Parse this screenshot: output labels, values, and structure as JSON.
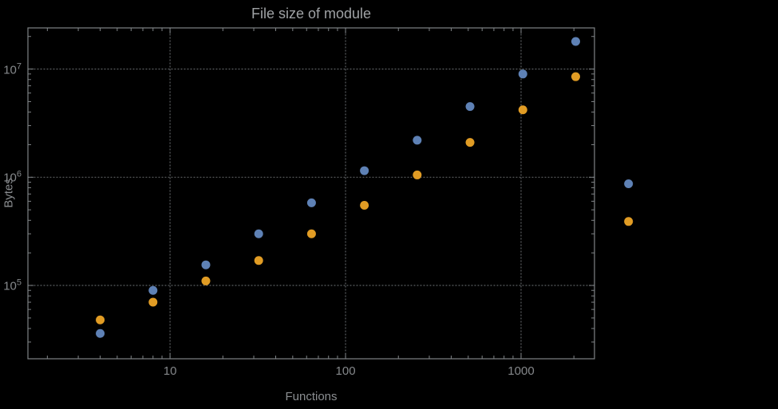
{
  "chart": {
    "title": "File size of module",
    "xlabel": "Functions",
    "ylabel": "Bytes"
  },
  "chart_data": {
    "type": "scatter",
    "x_scale": "log",
    "y_scale": "log",
    "grid": "dotted",
    "legend": "none",
    "title": "File size of module",
    "xlabel": "Functions",
    "ylabel": "Bytes",
    "x": [
      4,
      8,
      16,
      32,
      64,
      128,
      256,
      512,
      1024,
      2048,
      4096
    ],
    "series": [
      {
        "name": "blue",
        "color": "#5E81B5",
        "values": [
          36000,
          90000,
          155000,
          300000,
          580000,
          1150000,
          2200000,
          4500000,
          9000000,
          18000000,
          870000
        ]
      },
      {
        "name": "orange",
        "color": "#E19C24",
        "values": [
          48000,
          70000,
          110000,
          170000,
          300000,
          550000,
          1050000,
          2100000,
          4200000,
          8500000,
          390000
        ]
      }
    ],
    "x_ticks": [
      {
        "v": 10,
        "label": "10"
      },
      {
        "v": 100,
        "label": "100"
      },
      {
        "v": 1000,
        "label": "1000"
      }
    ],
    "y_ticks": [
      {
        "v": 100000,
        "base": "10",
        "exp": "5"
      },
      {
        "v": 1000000,
        "base": "10",
        "exp": "6"
      },
      {
        "v": 10000000,
        "base": "10",
        "exp": "7"
      }
    ],
    "xlim": [
      1.55,
      2620
    ],
    "ylim": [
      21000,
      24000000
    ],
    "marker_radius": 5.5,
    "colors": {
      "background": "#000000",
      "axis": "#7f8386",
      "grid": "#5d6063",
      "tick_label": "#85888b",
      "title": "#9fa2a5",
      "axis_label": "#8b8e91"
    }
  }
}
